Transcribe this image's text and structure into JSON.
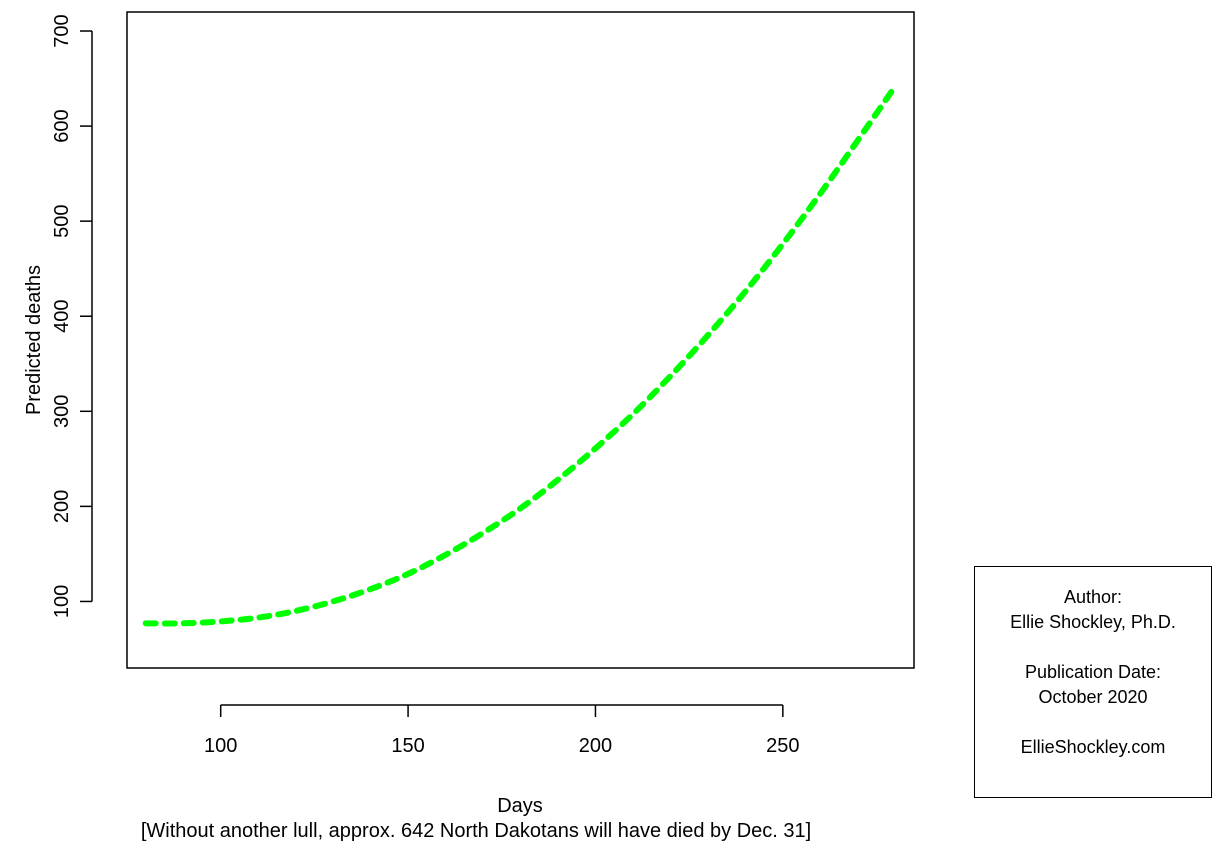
{
  "chart_data": {
    "type": "line",
    "xlabel": "Days",
    "ylabel": "Predicted deaths",
    "caption": "[Without another lull, approx. 642 North Dakotans will have died by Dec. 31]",
    "xlim": [
      75,
      285
    ],
    "ylim": [
      30,
      720
    ],
    "x_ticks": [
      100,
      150,
      200,
      250
    ],
    "y_ticks": [
      100,
      200,
      300,
      400,
      500,
      600,
      700
    ],
    "series": [
      {
        "color": "#00ff00",
        "line_style": "dotted",
        "x": [
          80,
          90,
          100,
          110,
          120,
          130,
          140,
          150,
          160,
          170,
          180,
          190,
          200,
          210,
          220,
          230,
          240,
          250,
          260,
          270,
          280
        ],
        "y": [
          77,
          77,
          79,
          83,
          90,
          100,
          113,
          129,
          149,
          172,
          198,
          228,
          261,
          297,
          337,
          380,
          426,
          476,
          529,
          585,
          642
        ]
      }
    ]
  },
  "info_box": {
    "author_label": "Author:",
    "author_name": "Ellie Shockley, Ph.D.",
    "date_label": "Publication Date:",
    "date_value": "October 2020",
    "website": "EllieShockley.com"
  }
}
